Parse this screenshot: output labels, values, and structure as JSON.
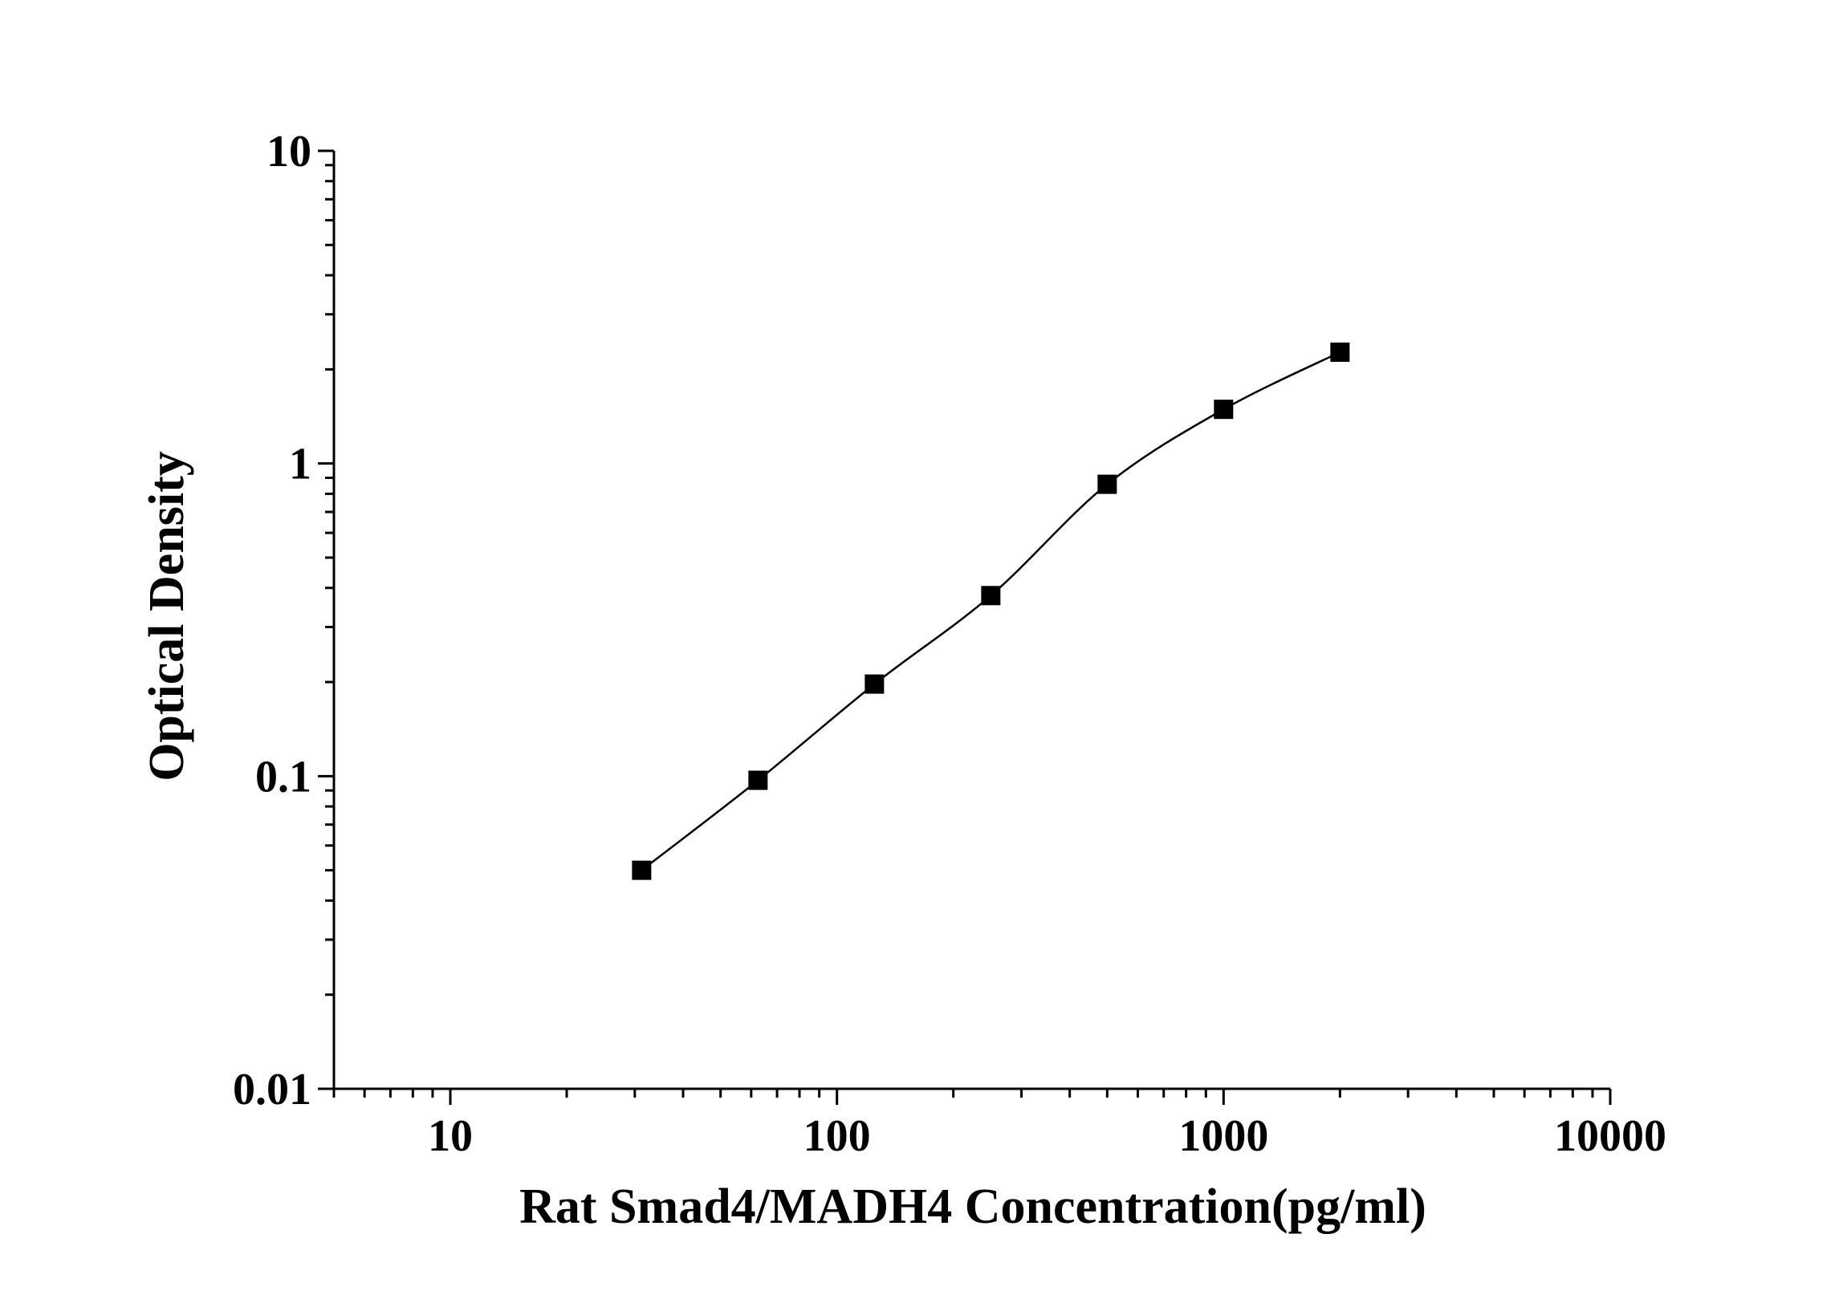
{
  "chart_data": {
    "type": "scatter",
    "xlabel": "Rat Smad4/MADH4 Concentration(pg/ml)",
    "ylabel": "Optical Density",
    "x_scale": "log",
    "y_scale": "log",
    "xlim": [
      5,
      10000
    ],
    "ylim": [
      0.01,
      10
    ],
    "x_tick_labels": [
      "10",
      "100",
      "1000",
      "10000"
    ],
    "y_tick_labels": [
      "0.01",
      "0.1",
      "1",
      "10"
    ],
    "grid": false,
    "legend": "none",
    "series": [
      {
        "marker": "square",
        "line": "smooth",
        "color": "#000000",
        "x": [
          31.25,
          62.5,
          125,
          250,
          500,
          1000,
          2000
        ],
        "y": [
          0.05,
          0.097,
          0.197,
          0.378,
          0.858,
          1.49,
          2.27
        ]
      }
    ]
  }
}
